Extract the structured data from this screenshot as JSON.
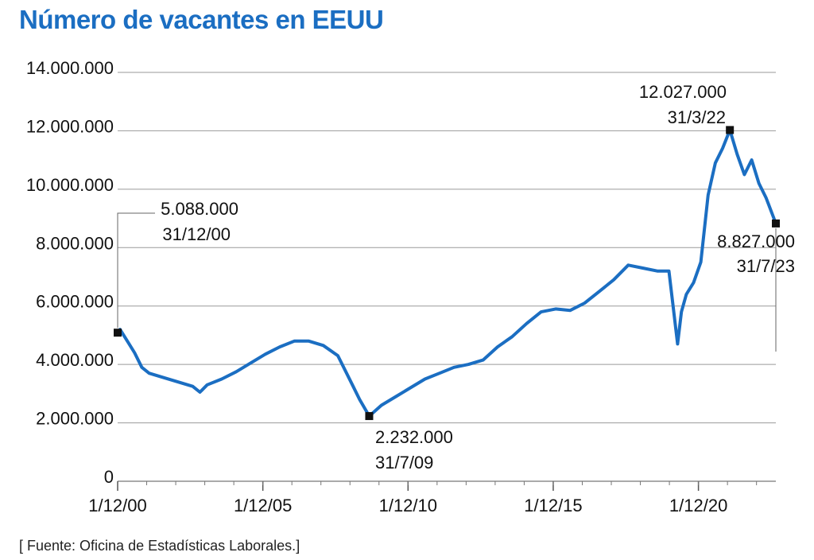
{
  "chart_data": {
    "type": "line",
    "title": "Número de vacantes en EEUU",
    "source": "[ Fuente: Oficina de Estadísticas Laborales.]",
    "line_color": "#1b6ec2",
    "ylim": [
      0,
      14000000
    ],
    "yticks": [
      {
        "value": 0,
        "label": "0"
      },
      {
        "value": 2000000,
        "label": "2.000.000"
      },
      {
        "value": 4000000,
        "label": "4.000.000"
      },
      {
        "value": 6000000,
        "label": "6.000.000"
      },
      {
        "value": 8000000,
        "label": "8.000.000"
      },
      {
        "value": 10000000,
        "label": "10.000.000"
      },
      {
        "value": 12000000,
        "label": "12.000.000"
      },
      {
        "value": 14000000,
        "label": "14.000.000"
      }
    ],
    "xticks": [
      {
        "value": 2000.917,
        "label": "1/12/00"
      },
      {
        "value": 2005.917,
        "label": "1/12/05"
      },
      {
        "value": 2010.917,
        "label": "1/12/10"
      },
      {
        "value": 2015.917,
        "label": "1/12/15"
      },
      {
        "value": 2020.917,
        "label": "1/12/20"
      }
    ],
    "xlim": [
      2000.917,
      2023.583
    ],
    "series": [
      {
        "x": [
          2000.917,
          2001.0,
          2001.25,
          2001.5,
          2001.75,
          2002.0,
          2002.5,
          2003.0,
          2003.5,
          2003.75,
          2004.0,
          2004.5,
          2005.0,
          2005.5,
          2006.0,
          2006.5,
          2007.0,
          2007.5,
          2008.0,
          2008.5,
          2009.0,
          2009.25,
          2009.58,
          2010.0,
          2010.5,
          2011.0,
          2011.5,
          2012.0,
          2012.5,
          2013.0,
          2013.5,
          2014.0,
          2014.5,
          2015.0,
          2015.5,
          2016.0,
          2016.5,
          2017.0,
          2017.5,
          2018.0,
          2018.5,
          2019.0,
          2019.5,
          2019.9,
          2020.2,
          2020.33,
          2020.5,
          2020.75,
          2021.0,
          2021.25,
          2021.5,
          2021.75,
          2022.0,
          2022.25,
          2022.5,
          2022.75,
          2023.0,
          2023.25,
          2023.583
        ],
        "values": [
          5088000,
          5200000,
          4800000,
          4400000,
          3900000,
          3700000,
          3550000,
          3400000,
          3250000,
          3050000,
          3300000,
          3500000,
          3750000,
          4050000,
          4350000,
          4600000,
          4800000,
          4800000,
          4650000,
          4300000,
          3300000,
          2800000,
          2232000,
          2600000,
          2900000,
          3200000,
          3500000,
          3700000,
          3900000,
          4000000,
          4150000,
          4600000,
          4950000,
          5400000,
          5800000,
          5900000,
          5850000,
          6100000,
          6500000,
          6900000,
          7400000,
          7300000,
          7200000,
          7200000,
          4700000,
          5800000,
          6400000,
          6800000,
          7500000,
          9800000,
          10900000,
          11400000,
          12027000,
          11200000,
          10500000,
          11000000,
          10200000,
          9700000,
          8827000
        ]
      }
    ],
    "annotations": [
      {
        "x": 2000.917,
        "y": 5088000,
        "value": "5.088.000",
        "date": "31/12/00"
      },
      {
        "x": 2009.58,
        "y": 2232000,
        "value": "2.232.000",
        "date": "31/7/09"
      },
      {
        "x": 2022.0,
        "y": 12027000,
        "value": "12.027.000",
        "date": "31/3/22"
      },
      {
        "x": 2023.583,
        "y": 8827000,
        "value": "8.827.000",
        "date": "31/7/23"
      }
    ]
  }
}
